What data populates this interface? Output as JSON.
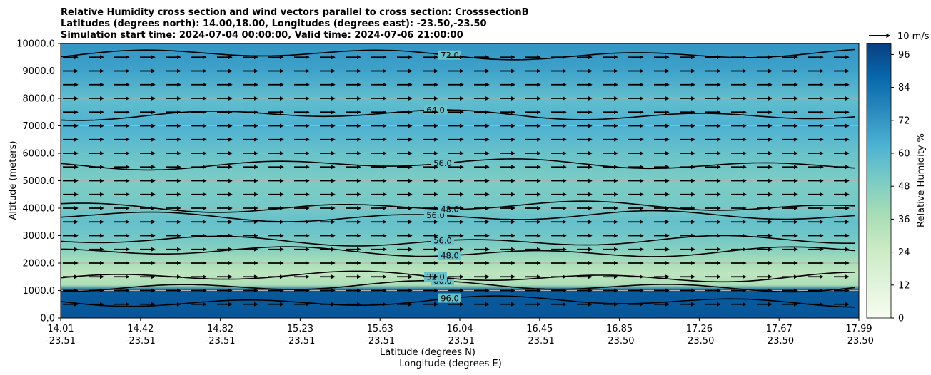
{
  "chart_data": {
    "type": "heatmap",
    "title_lines": [
      "Relative Humidity cross section and wind vectors parallel to cross section: CrosssectionB",
      "Latitudes (degrees north): 14.00,18.00, Longitudes (degrees east): -23.50,-23.50",
      "Simulation start time: 2024-07-04 00:00:00, Valid time: 2024-07-06 21:00:00"
    ],
    "ylabel": "Altitude (meters)",
    "xlabel_line1": "Latitude (degrees N)",
    "xlabel_line2": "Longitude (degrees E)",
    "ylim": [
      0,
      10000
    ],
    "yticks": [
      "0.0",
      "1000.0",
      "2000.0",
      "3000.0",
      "4000.0",
      "5000.0",
      "6000.0",
      "7000.0",
      "8000.0",
      "9000.0",
      "10000.0"
    ],
    "xticks": [
      {
        "lat": "14.01",
        "lon": "-23.51"
      },
      {
        "lat": "14.42",
        "lon": "-23.51"
      },
      {
        "lat": "14.82",
        "lon": "-23.51"
      },
      {
        "lat": "15.23",
        "lon": "-23.51"
      },
      {
        "lat": "15.63",
        "lon": "-23.51"
      },
      {
        "lat": "16.04",
        "lon": "-23.51"
      },
      {
        "lat": "16.45",
        "lon": "-23.51"
      },
      {
        "lat": "16.85",
        "lon": "-23.50"
      },
      {
        "lat": "17.26",
        "lon": "-23.50"
      },
      {
        "lat": "17.67",
        "lon": "-23.50"
      },
      {
        "lat": "17.99",
        "lon": "-23.50"
      }
    ],
    "grid": "horizontal",
    "colorbar": {
      "label": "Relative Humidity %",
      "range": [
        0,
        100
      ],
      "ticks": [
        "0",
        "12",
        "24",
        "36",
        "48",
        "60",
        "72",
        "84",
        "96"
      ],
      "colormap": "GnBu"
    },
    "quiver_key": "10 m/s",
    "rh_profile": [
      {
        "alt": 0,
        "rh": 93
      },
      {
        "alt": 1000,
        "rh": 92
      },
      {
        "alt": 1200,
        "rh": 36
      },
      {
        "alt": 1600,
        "rh": 30
      },
      {
        "alt": 2000,
        "rh": 36
      },
      {
        "alt": 2500,
        "rh": 47
      },
      {
        "alt": 3000,
        "rh": 53
      },
      {
        "alt": 3500,
        "rh": 56
      },
      {
        "alt": 4000,
        "rh": 52
      },
      {
        "alt": 5000,
        "rh": 50
      },
      {
        "alt": 6000,
        "rh": 55
      },
      {
        "alt": 7000,
        "rh": 63
      },
      {
        "alt": 8000,
        "rh": 57
      },
      {
        "alt": 9000,
        "rh": 68
      },
      {
        "alt": 10000,
        "rh": 72
      }
    ],
    "contour_levels": [
      {
        "alt": 600,
        "label": "96.0"
      },
      {
        "alt": 1150,
        "label": "80.0"
      },
      {
        "alt": 1500,
        "label": "32.0"
      },
      {
        "alt": 2400,
        "label": "48.0"
      },
      {
        "alt": 2800,
        "label": "56.0"
      },
      {
        "alt": 3700,
        "label": "56.0"
      },
      {
        "alt": 4050,
        "label": "48.0"
      },
      {
        "alt": 5600,
        "label": "56.0"
      },
      {
        "alt": 7400,
        "label": "64.0"
      },
      {
        "alt": 9600,
        "label": "72.0"
      }
    ],
    "wind_u_ms": 7
  }
}
